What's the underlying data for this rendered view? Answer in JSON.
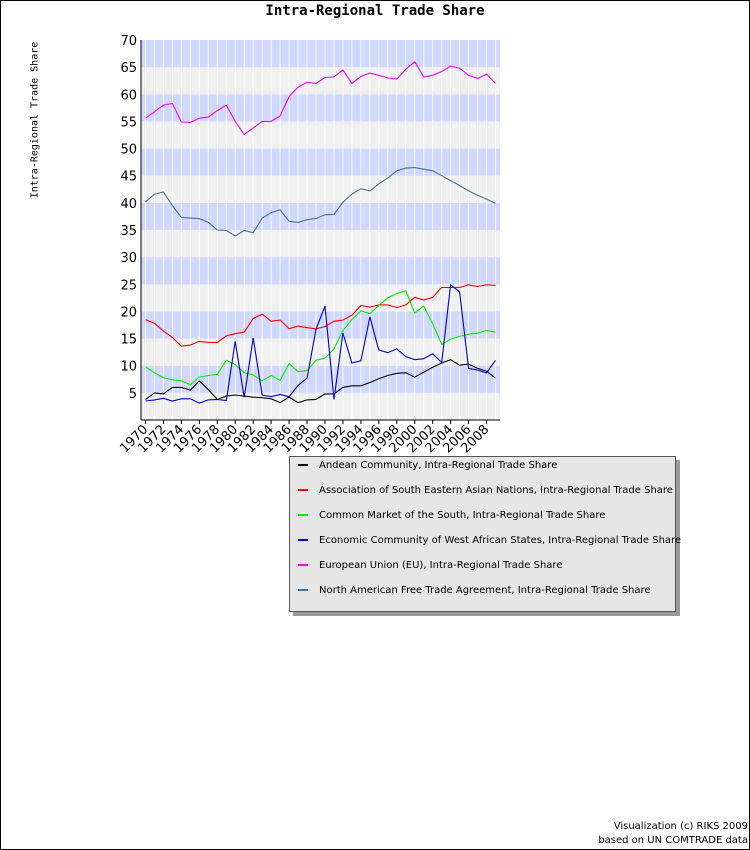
{
  "chart_data": {
    "type": "line",
    "title": "Intra-Regional Trade Share",
    "xlabel": "",
    "ylabel": "Intra-Regional Trade Share",
    "xlim": [
      1970,
      2009
    ],
    "ylim": [
      0,
      70
    ],
    "x_ticks": [
      "1970",
      "1972",
      "1974",
      "1976",
      "1978",
      "1980",
      "1982",
      "1984",
      "1986",
      "1988",
      "1990",
      "1992",
      "1994",
      "1996",
      "1998",
      "2000",
      "2002",
      "2004",
      "2006",
      "2008"
    ],
    "y_ticks": [
      "5",
      "10",
      "15",
      "20",
      "25",
      "30",
      "35",
      "40",
      "45",
      "50",
      "55",
      "60",
      "65",
      "70"
    ],
    "grid": true,
    "legend_position": "bottom-right",
    "x": [
      1970,
      1971,
      1972,
      1973,
      1974,
      1975,
      1976,
      1977,
      1978,
      1979,
      1980,
      1981,
      1982,
      1983,
      1984,
      1985,
      1986,
      1987,
      1988,
      1989,
      1990,
      1991,
      1992,
      1993,
      1994,
      1995,
      1996,
      1997,
      1998,
      1999,
      2000,
      2001,
      2002,
      2003,
      2004,
      2005,
      2006,
      2007,
      2008,
      2009
    ],
    "series": [
      {
        "name": "Andean Community, Intra-Regional Trade Share",
        "color": "#000000",
        "values": [
          3.8,
          5.0,
          4.8,
          6.0,
          6.0,
          5.5,
          7.2,
          5.6,
          3.8,
          4.4,
          4.6,
          4.4,
          4.2,
          4.1,
          3.9,
          3.2,
          4.2,
          3.2,
          3.7,
          3.8,
          4.8,
          4.8,
          6.0,
          6.3,
          6.3,
          6.9,
          7.6,
          8.2,
          8.6,
          8.7,
          7.9,
          8.8,
          9.7,
          10.5,
          11.1,
          10.1,
          10.3,
          9.5,
          9.0,
          7.7
        ]
      },
      {
        "name": "Association of South Eastern Asian Nations, Intra-Regional Trade Share",
        "color": "#ff0000",
        "values": [
          18.5,
          17.8,
          16.4,
          15.2,
          13.6,
          13.8,
          14.5,
          14.3,
          14.3,
          15.5,
          15.9,
          16.2,
          18.7,
          19.5,
          18.2,
          18.4,
          16.8,
          17.3,
          17.0,
          16.8,
          17.2,
          18.2,
          18.4,
          19.3,
          21.1,
          20.8,
          21.2,
          21.2,
          20.7,
          21.2,
          22.6,
          22.1,
          22.6,
          24.4,
          24.4,
          24.4,
          24.9,
          24.6,
          24.9,
          24.8
        ]
      },
      {
        "name": "Common Market of the South, Intra-Regional Trade Share",
        "color": "#00ee00",
        "values": [
          9.8,
          8.7,
          7.8,
          7.4,
          7.2,
          6.5,
          7.9,
          8.2,
          8.4,
          11.0,
          10.2,
          8.7,
          8.3,
          7.2,
          8.2,
          7.3,
          10.4,
          8.9,
          9.1,
          11.0,
          11.4,
          13.1,
          16.5,
          18.5,
          20.1,
          19.6,
          21.1,
          22.5,
          23.3,
          23.8,
          19.7,
          21.0,
          17.7,
          13.9,
          14.9,
          15.4,
          15.8,
          16.0,
          16.5,
          16.2
        ]
      },
      {
        "name": "Economic Community of West African States, Intra-Regional Trade Share",
        "color": "#0000cc",
        "values": [
          3.5,
          3.7,
          4.0,
          3.5,
          3.9,
          3.9,
          3.1,
          3.7,
          3.8,
          3.6,
          14.5,
          4.2,
          15.1,
          4.6,
          4.3,
          4.7,
          4.3,
          6.4,
          7.7,
          16.7,
          21.0,
          3.8,
          16.0,
          10.5,
          10.9,
          19.0,
          12.9,
          12.4,
          13.1,
          11.7,
          11.1,
          11.3,
          12.2,
          10.6,
          24.9,
          23.6,
          9.5,
          9.2,
          8.7,
          11.0
        ]
      },
      {
        "name": "European Union (EU), Intra-Regional Trade Share",
        "color": "#ff00ff",
        "values": [
          55.6,
          56.8,
          58.0,
          58.3,
          54.9,
          54.8,
          55.6,
          55.8,
          57.0,
          58.0,
          55.0,
          52.6,
          53.8,
          55.0,
          55.0,
          56.0,
          59.6,
          61.3,
          62.2,
          62.0,
          63.1,
          63.2,
          64.5,
          62.0,
          63.3,
          63.9,
          63.5,
          63.0,
          62.8,
          64.6,
          66.0,
          63.2,
          63.5,
          64.2,
          65.2,
          64.8,
          63.5,
          62.9,
          63.7,
          62.0
        ]
      },
      {
        "name": "North American Free Trade Agreement, Intra-Regional Trade Share",
        "color": "#4a7090",
        "values": [
          40.2,
          41.6,
          42.0,
          39.5,
          37.3,
          37.2,
          37.1,
          36.4,
          35.0,
          34.9,
          33.9,
          34.9,
          34.5,
          37.2,
          38.2,
          38.7,
          36.6,
          36.4,
          36.9,
          37.1,
          37.8,
          37.9,
          40.1,
          41.6,
          42.6,
          42.2,
          43.5,
          44.6,
          45.9,
          46.4,
          46.5,
          46.2,
          45.9,
          45.0,
          44.1,
          43.2,
          42.2,
          41.4,
          40.7,
          39.9
        ]
      }
    ]
  },
  "credits": {
    "line1": "Visualization (c) RIKS 2009",
    "line2": "based on UN COMTRADE data"
  }
}
